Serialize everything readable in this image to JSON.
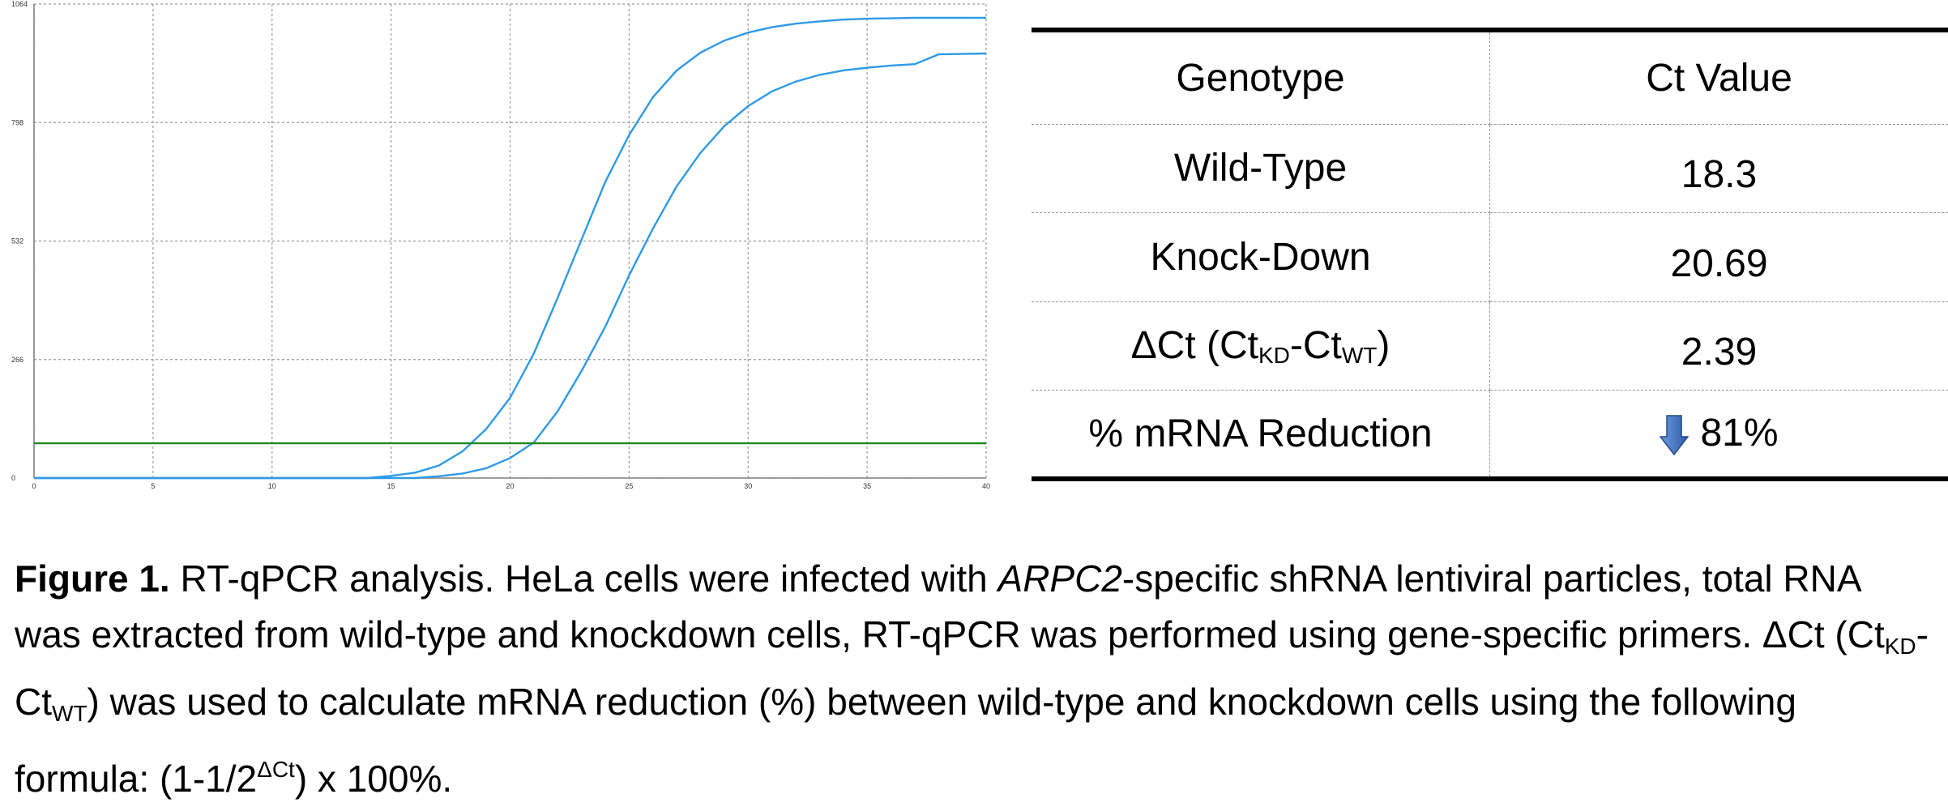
{
  "chart_data": {
    "type": "line",
    "title": "",
    "xlabel": "",
    "ylabel": "",
    "xlim": [
      0,
      40
    ],
    "ylim": [
      0,
      1064
    ],
    "x_ticks": [
      "0",
      "5",
      "10",
      "15",
      "20",
      "25",
      "30",
      "35",
      "40"
    ],
    "y_ticks": [
      "0",
      "266",
      "532",
      "798",
      "1064"
    ],
    "grid": true,
    "colors": {
      "curves": "#2f9ae6",
      "threshold": "#1e8a1e"
    },
    "series": [
      {
        "x": [
          0,
          14,
          15,
          16,
          17,
          18,
          19,
          20,
          21,
          22,
          23,
          24,
          25,
          26,
          27,
          28,
          29,
          30,
          31,
          32,
          33,
          34,
          35,
          36,
          37,
          38,
          40
        ],
        "values": [
          0,
          0,
          5,
          12,
          28,
          60,
          110,
          180,
          280,
          405,
          535,
          665,
          770,
          855,
          915,
          955,
          982,
          1000,
          1012,
          1020,
          1025,
          1029,
          1031,
          1032,
          1033,
          1033,
          1033
        ]
      },
      {
        "x": [
          0,
          16,
          17,
          18,
          19,
          20,
          21,
          22,
          23,
          24,
          25,
          26,
          27,
          28,
          29,
          30,
          31,
          32,
          33,
          34,
          35,
          36,
          37,
          38,
          40
        ],
        "values": [
          0,
          0,
          4,
          10,
          22,
          45,
          80,
          150,
          240,
          340,
          455,
          560,
          655,
          730,
          790,
          835,
          868,
          890,
          905,
          915,
          921,
          926,
          929,
          951,
          953
        ]
      },
      {
        "x": [
          0,
          40
        ],
        "values": [
          78,
          78
        ]
      }
    ]
  },
  "table": {
    "headers": [
      "Genotype",
      "Ct Value"
    ],
    "rows": [
      {
        "genotype": "Wild-Type",
        "ct": "18.3"
      },
      {
        "genotype": "Knock-Down",
        "ct": "20.69"
      },
      {
        "genotype_main": "ΔCt (Ct",
        "sub1": "KD",
        "mid": "-Ct",
        "sub2": "WT",
        "end": ")",
        "ct": "2.39"
      },
      {
        "genotype": "% mRNA Reduction",
        "ct": "81%",
        "icon": "down-arrow-icon",
        "icon_color": "#3b6fc2"
      }
    ]
  },
  "caption": {
    "label": "Figure 1.",
    "part1": " RT-qPCR analysis. HeLa cells were infected with ",
    "gene": "ARPC2",
    "part2": "-specific shRNA lentiviral particles, total RNA was extracted from wild-type and knockdown cells, RT-qPCR was performed using gene-specific primers. ΔCt (Ct",
    "sub1": "KD",
    "part3": "-Ct",
    "sub2": "WT",
    "part4": ") was used to calculate mRNA reduction (%) between wild-type and knockdown cells using the following formula: (1-1/2",
    "sup": "ΔCt",
    "part5": ") x 100%."
  }
}
